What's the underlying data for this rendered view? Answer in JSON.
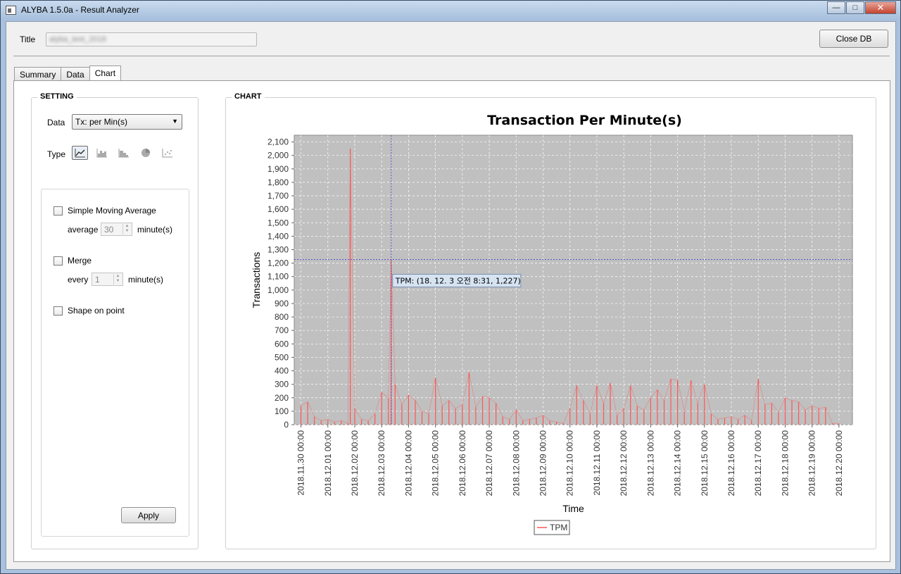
{
  "window": {
    "title": "ALYBA 1.5.0a - Result Analyzer",
    "min_glyph": "—",
    "max_glyph": "□",
    "close_glyph": "✕"
  },
  "header": {
    "title_label": "Title",
    "title_value": "alyba_test_2018",
    "close_db_label": "Close DB"
  },
  "tabs": [
    {
      "label": "Summary",
      "active": false
    },
    {
      "label": "Data",
      "active": false
    },
    {
      "label": "Chart",
      "active": true
    }
  ],
  "setting": {
    "group_title": "SETTING",
    "data_label": "Data",
    "data_selected": "Tx: per Min(s)",
    "type_label": "Type",
    "types": [
      "line-chart-icon",
      "area-chart-icon",
      "step-chart-icon",
      "pie-chart-icon",
      "scatter-chart-icon"
    ],
    "selected_type": "line-chart-icon",
    "sma": {
      "label": "Simple Moving Average",
      "checked": false,
      "average_label": "average",
      "value": "30",
      "unit": "minute(s)"
    },
    "merge": {
      "label": "Merge",
      "checked": false,
      "every_label": "every",
      "value": "1",
      "unit": "minute(s)"
    },
    "shape": {
      "label": "Shape on point",
      "checked": false
    },
    "apply_label": "Apply"
  },
  "chart_group_title": "CHART",
  "colors": {
    "plot_bg": "#c0c0c0",
    "series": "#ff5555",
    "crosshair": "#4444cc",
    "tooltip_bg": "#d6e4f2"
  },
  "chart_data": {
    "type": "line",
    "title": "Transaction Per Minute(s)",
    "xlabel": "Time",
    "ylabel": "Transactions",
    "ylim": [
      0,
      2150
    ],
    "yticks": [
      0,
      100,
      200,
      300,
      400,
      500,
      600,
      700,
      800,
      900,
      1000,
      1100,
      1200,
      1300,
      1400,
      1500,
      1600,
      1700,
      1800,
      1900,
      2000,
      2100
    ],
    "yticks_labels": [
      "0",
      "100",
      "200",
      "300",
      "400",
      "500",
      "600",
      "700",
      "800",
      "900",
      "1,000",
      "1,100",
      "1,200",
      "1,300",
      "1,400",
      "1,500",
      "1,600",
      "1,700",
      "1,800",
      "1,900",
      "2,000",
      "2,100"
    ],
    "xticks_labels": [
      "2018.11.30 00:00",
      "2018.12.01 00:00",
      "2018.12.02 00:00",
      "2018.12.03 00:00",
      "2018.12.04 00:00",
      "2018.12.05 00:00",
      "2018.12.06 00:00",
      "2018.12.07 00:00",
      "2018.12.08 00:00",
      "2018.12.09 00:00",
      "2018.12.10 00:00",
      "2018.12.11 00:00",
      "2018.12.12 00:00",
      "2018.12.13 00:00",
      "2018.12.14 00:00",
      "2018.12.15 00:00",
      "2018.12.16 00:00",
      "2018.12.17 00:00",
      "2018.12.18 00:00",
      "2018.12.19 00:00",
      "2018.12.20 00:00"
    ],
    "xlim": [
      "2018-11-29 18:00",
      "2018-12-20 12:00"
    ],
    "grid": true,
    "legend": "bottom",
    "series": [
      {
        "name": "TPM",
        "x": [
          "2018-11-30 00:00",
          "2018-11-30 06:00",
          "2018-11-30 12:00",
          "2018-11-30 18:00",
          "2018-12-01 00:00",
          "2018-12-01 06:00",
          "2018-12-01 12:00",
          "2018-12-01 18:00",
          "2018-12-01 20:00",
          "2018-12-02 00:00",
          "2018-12-02 06:00",
          "2018-12-02 12:00",
          "2018-12-02 18:00",
          "2018-12-03 00:00",
          "2018-12-03 06:00",
          "2018-12-03 08:31",
          "2018-12-03 12:00",
          "2018-12-03 18:00",
          "2018-12-04 00:00",
          "2018-12-04 06:00",
          "2018-12-04 12:00",
          "2018-12-04 18:00",
          "2018-12-05 00:00",
          "2018-12-05 06:00",
          "2018-12-05 12:00",
          "2018-12-05 18:00",
          "2018-12-06 00:00",
          "2018-12-06 06:00",
          "2018-12-06 12:00",
          "2018-12-06 18:00",
          "2018-12-07 00:00",
          "2018-12-07 06:00",
          "2018-12-07 12:00",
          "2018-12-07 18:00",
          "2018-12-08 00:00",
          "2018-12-08 06:00",
          "2018-12-08 12:00",
          "2018-12-08 18:00",
          "2018-12-09 00:00",
          "2018-12-09 06:00",
          "2018-12-09 12:00",
          "2018-12-09 18:00",
          "2018-12-10 00:00",
          "2018-12-10 06:00",
          "2018-12-10 12:00",
          "2018-12-10 18:00",
          "2018-12-11 00:00",
          "2018-12-11 06:00",
          "2018-12-11 12:00",
          "2018-12-11 18:00",
          "2018-12-12 00:00",
          "2018-12-12 06:00",
          "2018-12-12 12:00",
          "2018-12-12 18:00",
          "2018-12-13 00:00",
          "2018-12-13 06:00",
          "2018-12-13 12:00",
          "2018-12-13 18:00",
          "2018-12-14 00:00",
          "2018-12-14 06:00",
          "2018-12-14 12:00",
          "2018-12-14 18:00",
          "2018-12-15 00:00",
          "2018-12-15 06:00",
          "2018-12-15 12:00",
          "2018-12-15 18:00",
          "2018-12-16 00:00",
          "2018-12-16 06:00",
          "2018-12-16 12:00",
          "2018-12-16 18:00",
          "2018-12-17 00:00",
          "2018-12-17 06:00",
          "2018-12-17 12:00",
          "2018-12-17 18:00",
          "2018-12-18 00:00",
          "2018-12-18 06:00",
          "2018-12-18 12:00",
          "2018-12-18 18:00",
          "2018-12-19 00:00",
          "2018-12-19 06:00",
          "2018-12-19 12:00",
          "2018-12-19 18:00",
          "2018-12-20 00:00"
        ],
        "values": [
          140,
          170,
          60,
          30,
          40,
          20,
          30,
          10,
          2050,
          120,
          40,
          30,
          80,
          240,
          200,
          1227,
          300,
          150,
          220,
          180,
          100,
          80,
          350,
          140,
          180,
          120,
          150,
          390,
          130,
          210,
          200,
          160,
          60,
          40,
          110,
          30,
          40,
          50,
          70,
          30,
          20,
          10,
          120,
          290,
          180,
          80,
          290,
          160,
          310,
          70,
          120,
          290,
          140,
          110,
          200,
          260,
          180,
          340,
          330,
          100,
          330,
          160,
          300,
          80,
          40,
          50,
          60,
          40,
          70,
          30,
          340,
          150,
          160,
          90,
          200,
          180,
          170,
          110,
          140,
          120,
          130,
          10,
          10
        ]
      }
    ],
    "tooltip": "TPM: (18. 12. 3 오전 8:31, 1,227)",
    "crosshair": {
      "x": "2018-12-03 08:31",
      "y": 1227
    }
  }
}
